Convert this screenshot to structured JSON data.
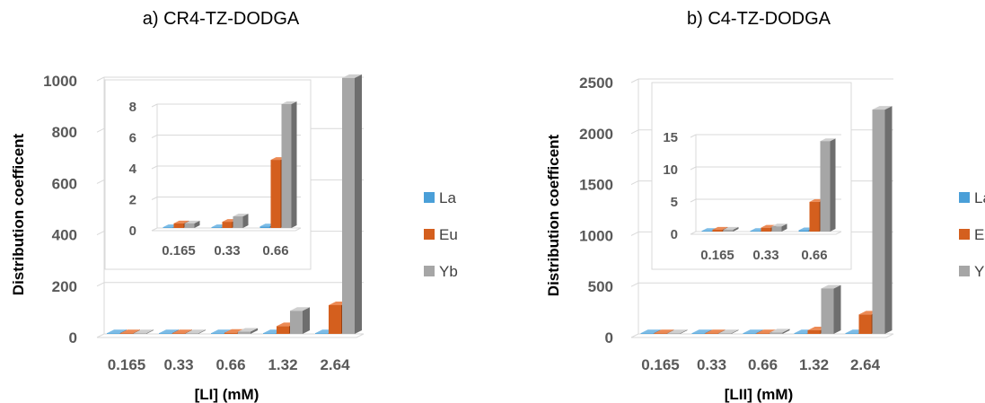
{
  "chart_data": [
    {
      "type": "bar",
      "panel": "main",
      "title": "a) CR4-TZ-DODGA",
      "xlabel": "[LI] (mM)",
      "ylabel": "Distribution coefficent",
      "categories": [
        "0.165",
        "0.33",
        "0.66",
        "1.32",
        "2.64"
      ],
      "ylim": [
        0,
        1000
      ],
      "yticks": [
        "0",
        "200",
        "400",
        "600",
        "800",
        "1000"
      ],
      "grid": true,
      "legend_position": "right",
      "series": [
        {
          "name": "La",
          "values": [
            0.02,
            0.03,
            0.04,
            0.05,
            0.1
          ]
        },
        {
          "name": "Eu",
          "values": [
            0.2,
            0.3,
            4.5,
            30,
            112
          ]
        },
        {
          "name": "Yb",
          "values": [
            0.3,
            0.8,
            8.6,
            90,
            997
          ]
        }
      ]
    },
    {
      "type": "bar",
      "panel": "inset",
      "title": "",
      "categories": [
        "0.165",
        "0.33",
        "0.66"
      ],
      "ylim": [
        0,
        8
      ],
      "yticks": [
        "0",
        "2",
        "4",
        "6",
        "8"
      ],
      "grid": true,
      "series": [
        {
          "name": "La",
          "values": [
            0.05,
            0.05,
            0.1
          ]
        },
        {
          "name": "Eu",
          "values": [
            0.3,
            0.4,
            4.4
          ]
        },
        {
          "name": "Yb",
          "values": [
            0.3,
            0.75,
            8.6
          ]
        }
      ]
    },
    {
      "type": "bar",
      "panel": "main",
      "title": "b) C4-TZ-DODGA",
      "xlabel": "[LII] (mM)",
      "ylabel": "Distribution coefficent",
      "categories": [
        "0.165",
        "0.33",
        "0.66",
        "1.32",
        "2.64"
      ],
      "ylim": [
        0,
        2500
      ],
      "yticks": [
        "0",
        "500",
        "1000",
        "1500",
        "2000",
        "2500"
      ],
      "grid": true,
      "legend_position": "right",
      "series": [
        {
          "name": "La",
          "values": [
            0.02,
            0.03,
            0.05,
            0.1,
            0.2
          ]
        },
        {
          "name": "Eu",
          "values": [
            0.1,
            0.6,
            4.5,
            35,
            190
          ]
        },
        {
          "name": "Yb",
          "values": [
            0.2,
            0.8,
            14,
            445,
            2200
          ]
        }
      ]
    },
    {
      "type": "bar",
      "panel": "inset",
      "title": "",
      "categories": [
        "0.165",
        "0.33",
        "0.66"
      ],
      "ylim": [
        0,
        15
      ],
      "yticks": [
        "0",
        "5",
        "10",
        "15"
      ],
      "grid": true,
      "series": [
        {
          "name": "La",
          "values": [
            0.1,
            0.1,
            0.2
          ]
        },
        {
          "name": "Eu",
          "values": [
            0.3,
            0.6,
            4.6
          ]
        },
        {
          "name": "Yb",
          "values": [
            0.3,
            0.8,
            14
          ]
        }
      ]
    }
  ],
  "colors": {
    "La": "#4a9fd8",
    "Eu": "#d45f1e",
    "Yb": "#a6a6a6"
  }
}
